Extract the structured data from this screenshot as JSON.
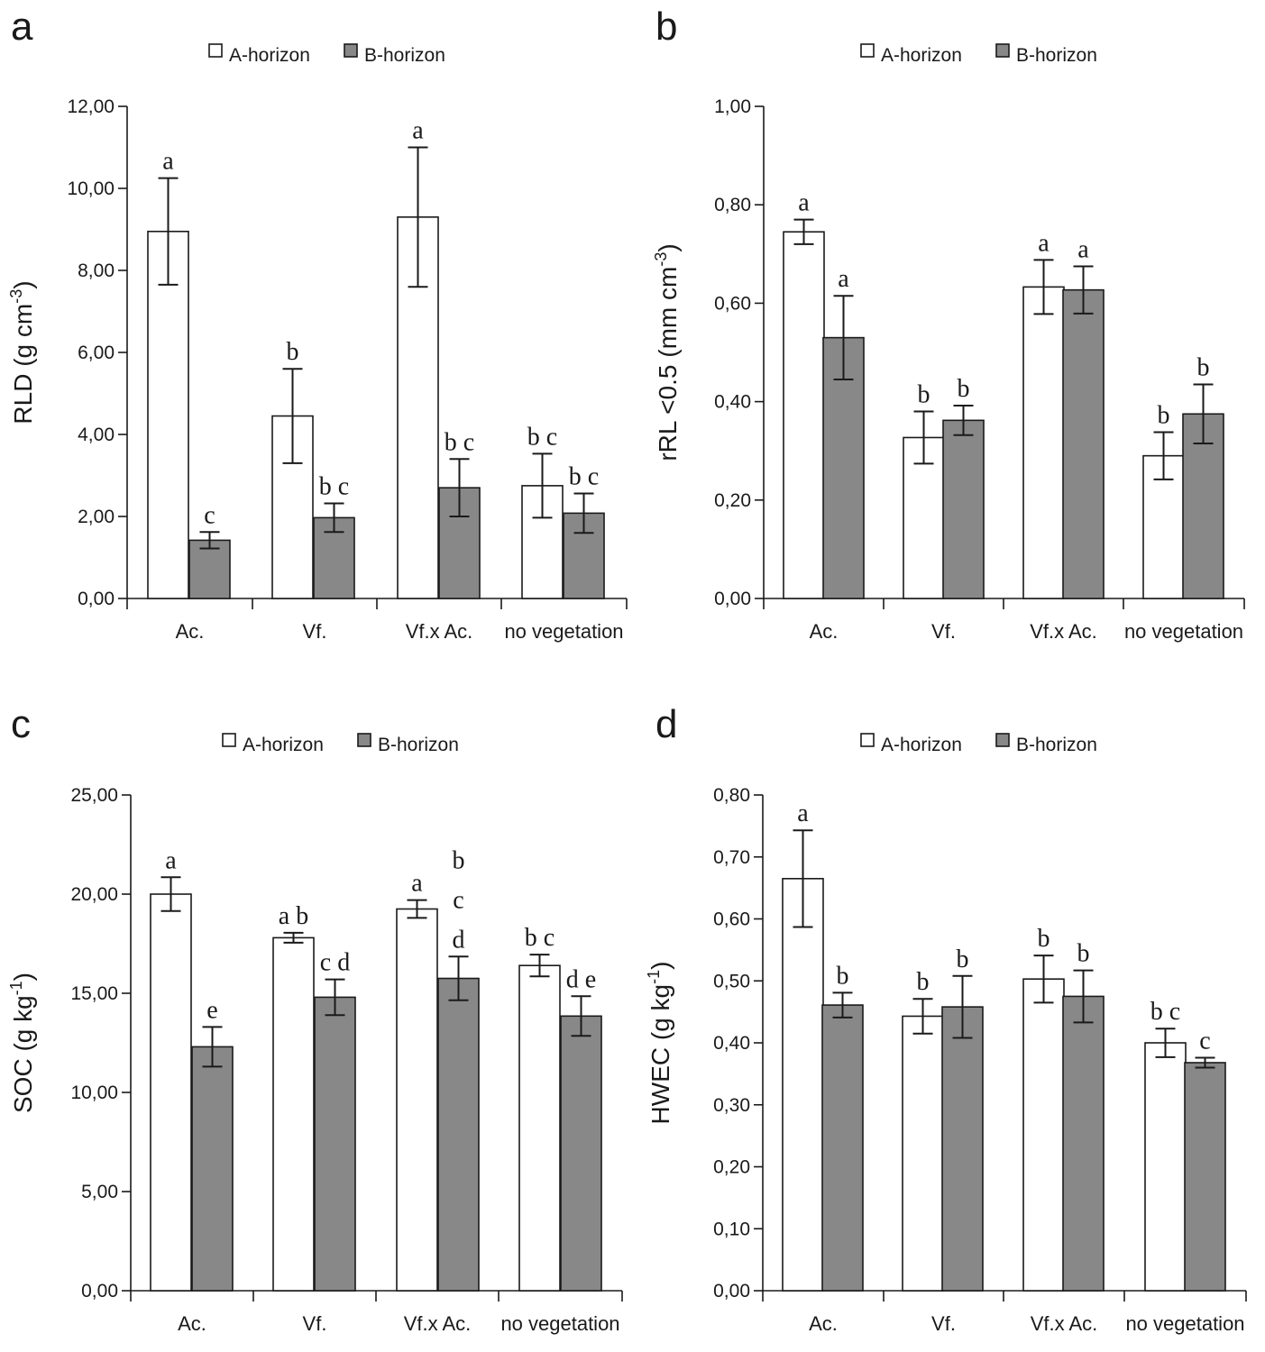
{
  "colors": {
    "series_a": "#ffffff",
    "series_b": "#888888",
    "ink": "#1a1a1a"
  },
  "chart_data": [
    {
      "panel_label": "a",
      "type": "bar",
      "categories": [
        "Ac.",
        "Vf.",
        "Vf.x Ac.",
        "no vegetation"
      ],
      "ylabel_main": "RLD (g cm",
      "ylabel_sup": "-3",
      "ylabel_tail": ")",
      "ylim": [
        0,
        12
      ],
      "yticks": [
        0,
        2,
        4,
        6,
        8,
        10,
        12
      ],
      "ytick_labels": [
        "0,00",
        "2,00",
        "4,00",
        "6,00",
        "8,00",
        "10,00",
        "12,00"
      ],
      "series": [
        {
          "name": "A-horizon",
          "values": [
            8.95,
            4.45,
            9.3,
            2.75
          ],
          "errors": [
            1.3,
            1.15,
            1.7,
            0.78
          ],
          "letters": [
            [
              "a"
            ],
            [
              "b"
            ],
            [
              "a"
            ],
            [
              "b c"
            ]
          ]
        },
        {
          "name": "B-horizon",
          "values": [
            1.42,
            1.97,
            2.7,
            2.08
          ],
          "errors": [
            0.2,
            0.35,
            0.7,
            0.48
          ],
          "letters": [
            [
              "c"
            ],
            [
              "b c"
            ],
            [
              "b c"
            ],
            [
              "b c"
            ]
          ]
        }
      ]
    },
    {
      "panel_label": "b",
      "type": "bar",
      "categories": [
        "Ac.",
        "Vf.",
        "Vf.x Ac.",
        "no vegetation"
      ],
      "ylabel_main": "rRL <0.5 (mm cm",
      "ylabel_sup": "-3",
      "ylabel_tail": ")",
      "ylim": [
        0,
        1
      ],
      "yticks": [
        0,
        0.2,
        0.4,
        0.6,
        0.8,
        1.0
      ],
      "ytick_labels": [
        "0,00",
        "0,20",
        "0,40",
        "0,60",
        "0,80",
        "1,00"
      ],
      "series": [
        {
          "name": "A-horizon",
          "values": [
            0.745,
            0.327,
            0.633,
            0.29
          ],
          "errors": [
            0.025,
            0.053,
            0.055,
            0.048
          ],
          "letters": [
            [
              "a"
            ],
            [
              "b"
            ],
            [
              "a"
            ],
            [
              "b"
            ]
          ]
        },
        {
          "name": "B-horizon",
          "values": [
            0.53,
            0.362,
            0.627,
            0.375
          ],
          "errors": [
            0.085,
            0.03,
            0.048,
            0.06
          ],
          "letters": [
            [
              "a"
            ],
            [
              "b"
            ],
            [
              "a"
            ],
            [
              "b"
            ]
          ]
        }
      ]
    },
    {
      "panel_label": "c",
      "type": "bar",
      "categories": [
        "Ac.",
        "Vf.",
        "Vf.x Ac.",
        "no vegetation"
      ],
      "ylabel_main": "SOC (g kg",
      "ylabel_sup": "-1",
      "ylabel_tail": ")",
      "ylim": [
        0,
        25
      ],
      "yticks": [
        0,
        5,
        10,
        15,
        20,
        25
      ],
      "ytick_labels": [
        "0,00",
        "5,00",
        "10,00",
        "15,00",
        "20,00",
        "25,00"
      ],
      "series": [
        {
          "name": "A-horizon",
          "values": [
            20.0,
            17.8,
            19.25,
            16.4
          ],
          "errors": [
            0.85,
            0.25,
            0.45,
            0.55
          ],
          "letters": [
            [
              "a"
            ],
            [
              "a b"
            ],
            [
              "a"
            ],
            [
              "b c"
            ]
          ]
        },
        {
          "name": "B-horizon",
          "values": [
            12.3,
            14.8,
            15.75,
            13.85
          ],
          "errors": [
            1.0,
            0.9,
            1.1,
            1.0
          ],
          "letters": [
            [
              "e"
            ],
            [
              "c d"
            ],
            [
              "b",
              "c",
              "d"
            ],
            [
              "d e"
            ]
          ]
        }
      ]
    },
    {
      "panel_label": "d",
      "type": "bar",
      "categories": [
        "Ac.",
        "Vf.",
        "Vf.x Ac.",
        "no vegetation"
      ],
      "ylabel_main": "HWEC (g kg",
      "ylabel_sup": "-1",
      "ylabel_tail": ")",
      "ylim": [
        0,
        0.8
      ],
      "yticks": [
        0,
        0.1,
        0.2,
        0.3,
        0.4,
        0.5,
        0.6,
        0.7,
        0.8
      ],
      "ytick_labels": [
        "0,00",
        "0,10",
        "0,20",
        "0,30",
        "0,40",
        "0,50",
        "0,60",
        "0,70",
        "0,80"
      ],
      "series": [
        {
          "name": "A-horizon",
          "values": [
            0.665,
            0.443,
            0.503,
            0.4
          ],
          "errors": [
            0.078,
            0.028,
            0.038,
            0.023
          ],
          "letters": [
            [
              "a"
            ],
            [
              "b"
            ],
            [
              "b"
            ],
            [
              "b c"
            ]
          ]
        },
        {
          "name": "B-horizon",
          "values": [
            0.461,
            0.458,
            0.475,
            0.368
          ],
          "errors": [
            0.02,
            0.05,
            0.042,
            0.008
          ],
          "letters": [
            [
              "b"
            ],
            [
              "b"
            ],
            [
              "b"
            ],
            [
              "c"
            ]
          ]
        }
      ]
    }
  ]
}
